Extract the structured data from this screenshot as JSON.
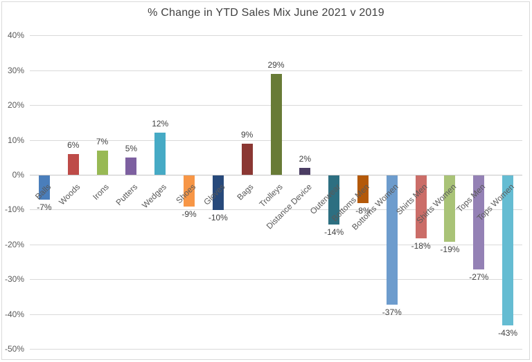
{
  "chart_data": {
    "type": "bar",
    "title": "% Change in YTD Sales Mix June 2021 v 2019",
    "xlabel": "",
    "ylabel": "",
    "ylim": [
      -50,
      40
    ],
    "grid": true,
    "legend": false,
    "y_tick_values": [
      40,
      30,
      20,
      10,
      0,
      -10,
      -20,
      -30,
      -40,
      -50
    ],
    "y_tick_labels": [
      "40%",
      "30%",
      "20%",
      "10%",
      "0%",
      "-10%",
      "-20%",
      "-30%",
      "-40%",
      "-50%"
    ],
    "categories": [
      "Balls",
      "Woods",
      "Irons",
      "Putters",
      "Wedges",
      "Shoes",
      "Gloves",
      "Bags",
      "Trolleys",
      "Distance Device",
      "Outerwear",
      "Bottoms Men",
      "Bottoms Women",
      "Shirts Men",
      "Shirts Women",
      "Tops Men",
      "Tops Women"
    ],
    "values": [
      -7,
      6,
      7,
      5,
      12,
      -9,
      -10,
      9,
      29,
      2,
      -14,
      -8,
      -37,
      -18,
      -19,
      -27,
      -43
    ],
    "data_labels": [
      "-7%",
      "6%",
      "7%",
      "5%",
      "12%",
      "-9%",
      "-10%",
      "9%",
      "29%",
      "2%",
      "-14%",
      "-8%",
      "-37%",
      "-18%",
      "-19%",
      "-27%",
      "-43%"
    ],
    "colors": [
      "#4A7EBB",
      "#BE4B48",
      "#98B954",
      "#7D60A0",
      "#46AAC5",
      "#F79646",
      "#27497B",
      "#8B3733",
      "#687B36",
      "#4B3D63",
      "#2D6F81",
      "#B45909",
      "#6D9CCD",
      "#CB6D68",
      "#A9C377",
      "#9481B5",
      "#65BCD2"
    ],
    "style": {
      "background": "#FFFFFF",
      "border_color": "#D9D9D9",
      "gridline_color": "#D9D9D9",
      "axis_line_color": "#C6C6C6",
      "title_color": "#404040",
      "tick_label_color": "#595959",
      "category_label_color": "#595959",
      "data_label_color": "#3F3F3F"
    }
  }
}
